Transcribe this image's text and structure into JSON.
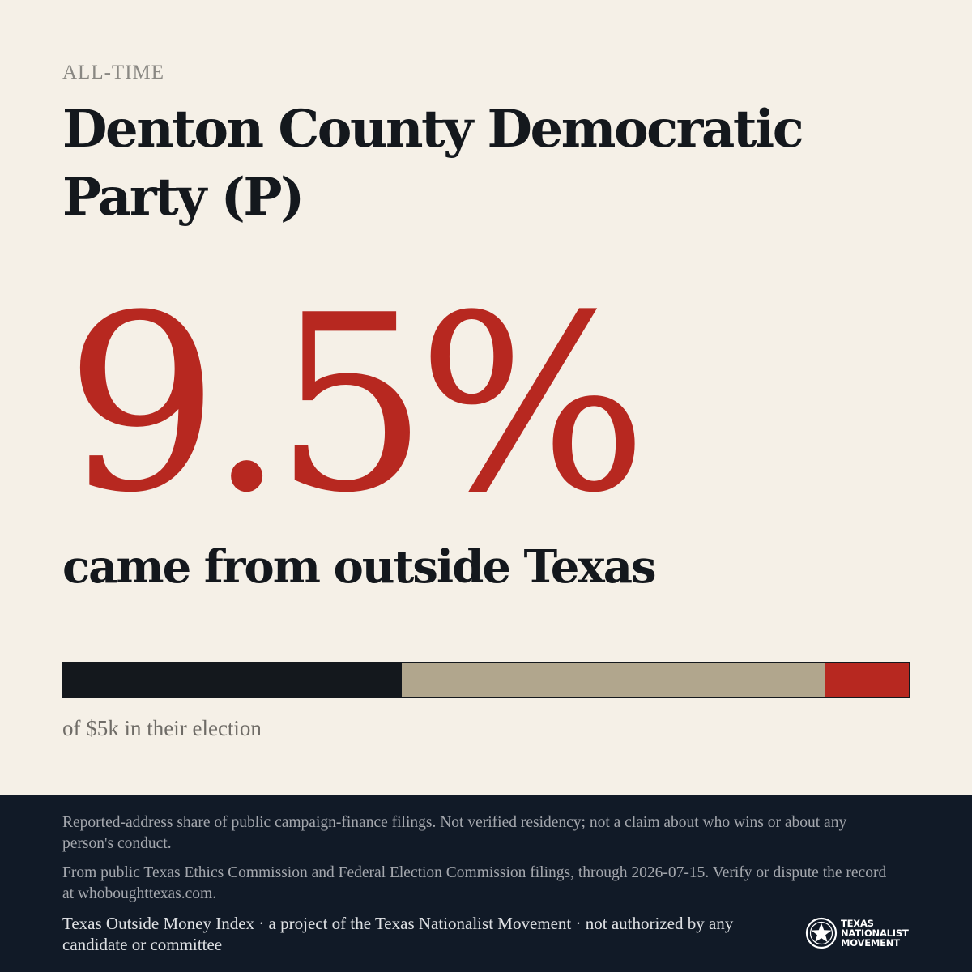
{
  "header": {
    "kicker": "ALL-TIME",
    "title": "Denton County Democratic Party (P)"
  },
  "stat": {
    "value": "9.5%",
    "caption": "came from outside Texas"
  },
  "share_bar": {
    "segments": [
      {
        "share": 0.4,
        "color": "#14181d"
      },
      {
        "share": 0.5,
        "color": "#b1a68d"
      },
      {
        "share": 0.1,
        "color": "#b72820"
      }
    ],
    "caption": "of $5k in their election"
  },
  "footer": {
    "disclaimer": "Reported-address share of public campaign-finance filings. Not verified residency; not a claim about who wins or about any person's conduct.",
    "source": "From public Texas Ethics Commission and Federal Election Commission filings, through 2026-07-15. Verify or dispute the record at whoboughttexas.com.",
    "credit": "Texas Outside Money Index · a project of the Texas Nationalist Movement · not authorized by any candidate or committee",
    "logo": {
      "icon": "star-seal-icon",
      "line1": "TEXAS",
      "line2": "NATIONALIST",
      "line3": "MOVEMENT"
    }
  },
  "colors": {
    "background": "#f5f0e7",
    "accent": "#b72820",
    "ink": "#14181d",
    "footer_bg": "#111a27"
  }
}
